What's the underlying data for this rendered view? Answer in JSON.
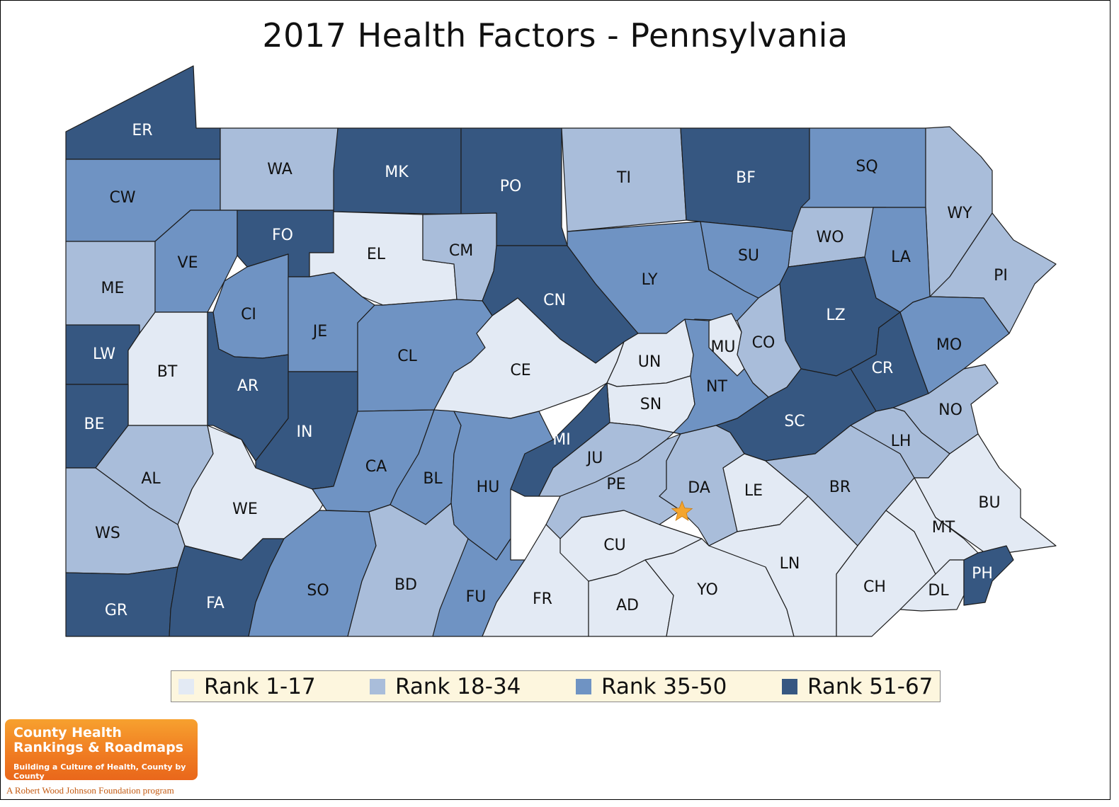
{
  "title": "2017 Health Factors - Pennsylvania",
  "legend": [
    {
      "label": "Rank 1-17",
      "color": "#e3eaf4"
    },
    {
      "label": "Rank 18-34",
      "color": "#a9bdda"
    },
    {
      "label": "Rank 35-50",
      "color": "#6f93c3"
    },
    {
      "label": "Rank 51-67",
      "color": "#365781"
    }
  ],
  "marker": {
    "icon": "star-icon",
    "color": "#f4a52e"
  },
  "counties": [
    {
      "code": "ER",
      "tier": 3
    },
    {
      "code": "CW",
      "tier": 2
    },
    {
      "code": "WA",
      "tier": 1
    },
    {
      "code": "MK",
      "tier": 3
    },
    {
      "code": "PO",
      "tier": 3
    },
    {
      "code": "TI",
      "tier": 1
    },
    {
      "code": "BF",
      "tier": 3
    },
    {
      "code": "SQ",
      "tier": 2
    },
    {
      "code": "WY",
      "tier": 1
    },
    {
      "code": "WO",
      "tier": 1
    },
    {
      "code": "PI",
      "tier": 1
    },
    {
      "code": "ME",
      "tier": 1
    },
    {
      "code": "VE",
      "tier": 2
    },
    {
      "code": "FO",
      "tier": 3
    },
    {
      "code": "EL",
      "tier": 0
    },
    {
      "code": "CM",
      "tier": 1
    },
    {
      "code": "CN",
      "tier": 3
    },
    {
      "code": "LY",
      "tier": 2
    },
    {
      "code": "SU",
      "tier": 2
    },
    {
      "code": "LA",
      "tier": 2
    },
    {
      "code": "LZ",
      "tier": 3
    },
    {
      "code": "CI",
      "tier": 2
    },
    {
      "code": "JE",
      "tier": 2
    },
    {
      "code": "CL",
      "tier": 2
    },
    {
      "code": "CE",
      "tier": 0
    },
    {
      "code": "UN",
      "tier": 0
    },
    {
      "code": "MU",
      "tier": 0
    },
    {
      "code": "CO",
      "tier": 1
    },
    {
      "code": "CR",
      "tier": 3
    },
    {
      "code": "MO",
      "tier": 2
    },
    {
      "code": "LW",
      "tier": 3
    },
    {
      "code": "BT",
      "tier": 0
    },
    {
      "code": "AR",
      "tier": 3
    },
    {
      "code": "IN",
      "tier": 3
    },
    {
      "code": "SN",
      "tier": 0
    },
    {
      "code": "NT",
      "tier": 2
    },
    {
      "code": "SC",
      "tier": 3
    },
    {
      "code": "NO",
      "tier": 1
    },
    {
      "code": "BE",
      "tier": 3
    },
    {
      "code": "AL",
      "tier": 1
    },
    {
      "code": "WE",
      "tier": 0
    },
    {
      "code": "CA",
      "tier": 2
    },
    {
      "code": "BL",
      "tier": 2
    },
    {
      "code": "HU",
      "tier": 2
    },
    {
      "code": "MI",
      "tier": 3
    },
    {
      "code": "JU",
      "tier": 1
    },
    {
      "code": "PE",
      "tier": 1
    },
    {
      "code": "DA",
      "tier": 1
    },
    {
      "code": "LE",
      "tier": 0
    },
    {
      "code": "BR",
      "tier": 1
    },
    {
      "code": "LH",
      "tier": 1
    },
    {
      "code": "BU",
      "tier": 0
    },
    {
      "code": "WS",
      "tier": 1
    },
    {
      "code": "GR",
      "tier": 3
    },
    {
      "code": "FA",
      "tier": 3
    },
    {
      "code": "SO",
      "tier": 2
    },
    {
      "code": "BD",
      "tier": 1
    },
    {
      "code": "FU",
      "tier": 2
    },
    {
      "code": "FR",
      "tier": 0
    },
    {
      "code": "CU",
      "tier": 0
    },
    {
      "code": "AD",
      "tier": 0
    },
    {
      "code": "YO",
      "tier": 0
    },
    {
      "code": "LN",
      "tier": 0
    },
    {
      "code": "CH",
      "tier": 0
    },
    {
      "code": "MT",
      "tier": 0
    },
    {
      "code": "DL",
      "tier": 0
    },
    {
      "code": "PH",
      "tier": 3
    }
  ],
  "logo": {
    "line1": "County Health",
    "line2": "Rankings & Roadmaps",
    "tagline": "Building a Culture of Health, County by County"
  },
  "credit": "A Robert Wood Johnson Foundation program"
}
